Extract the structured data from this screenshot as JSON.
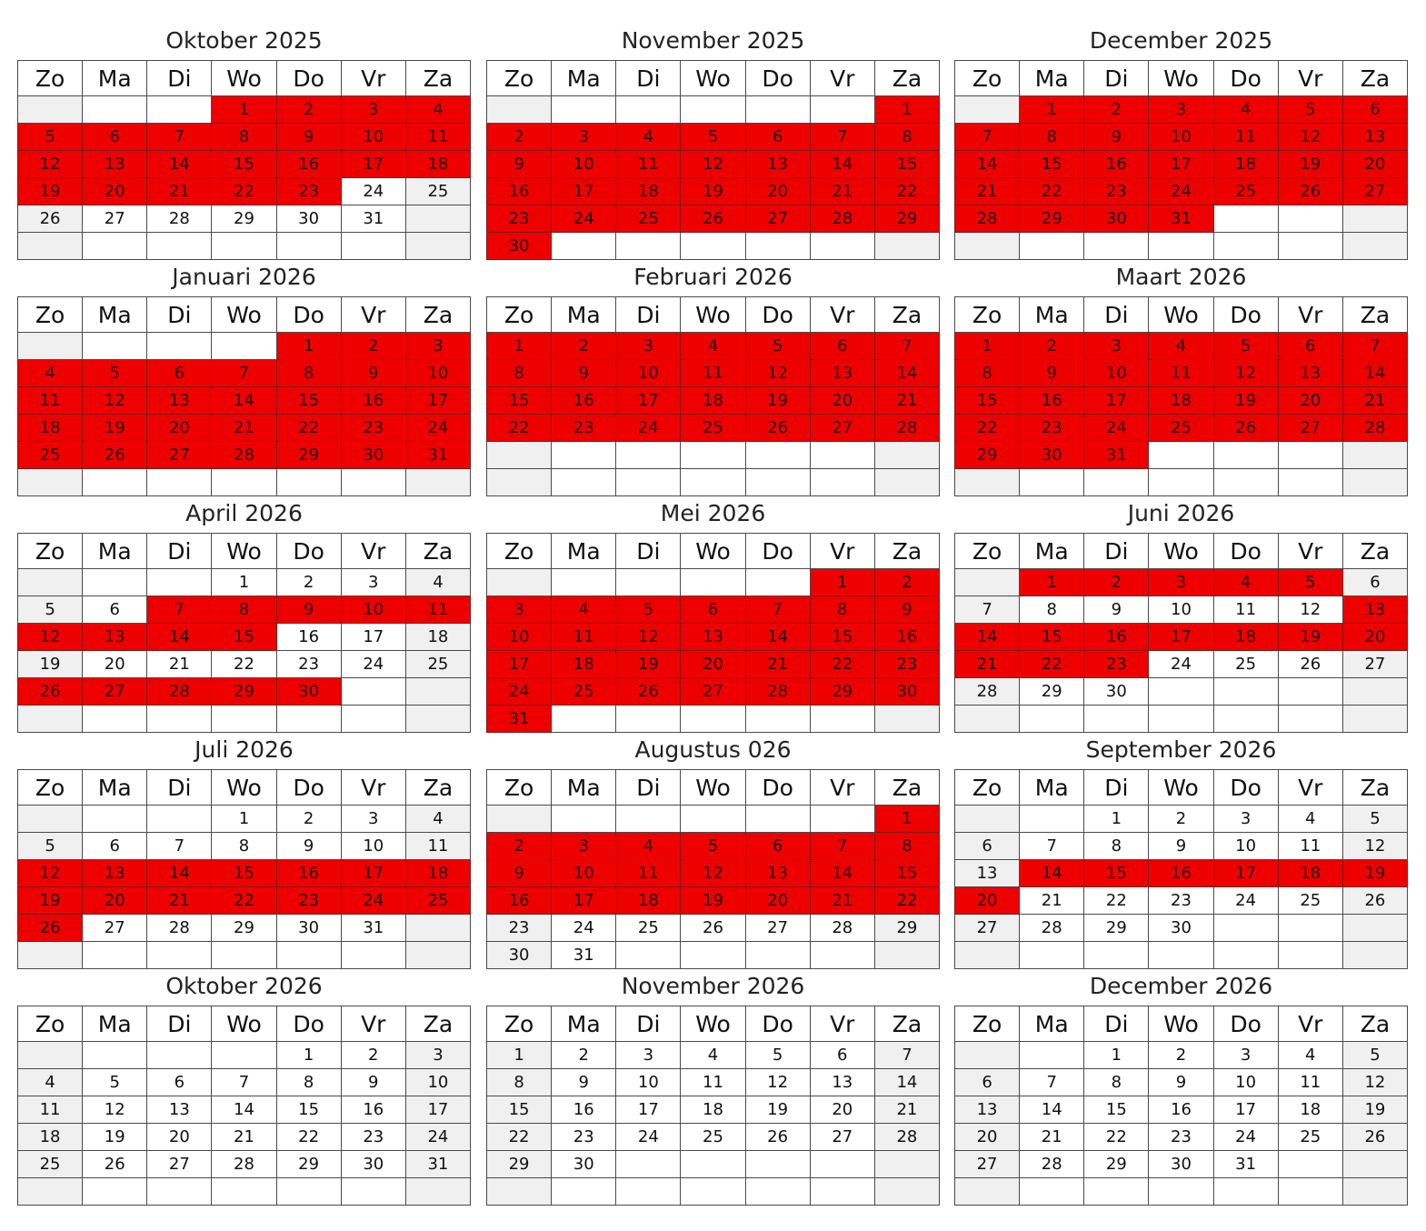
{
  "weekday_labels": [
    "Zo",
    "Ma",
    "Di",
    "Wo",
    "Do",
    "Vr",
    "Za"
  ],
  "colors": {
    "booked": "#ee0000",
    "free": "#ffffff",
    "weekend_empty": "#f0f0f0",
    "grid": "#4a4a4a"
  },
  "months": [
    {
      "title": "Oktober 2025",
      "start_weekday": 3,
      "days_in_month": 31,
      "booked_days": [
        1,
        2,
        3,
        4,
        5,
        6,
        7,
        8,
        9,
        10,
        11,
        12,
        13,
        14,
        15,
        16,
        17,
        18,
        19,
        20,
        21,
        22,
        23
      ]
    },
    {
      "title": "November 2025",
      "start_weekday": 6,
      "days_in_month": 30,
      "booked_days": [
        1,
        2,
        3,
        4,
        5,
        6,
        7,
        8,
        9,
        10,
        11,
        12,
        13,
        14,
        15,
        16,
        17,
        18,
        19,
        20,
        21,
        22,
        23,
        24,
        25,
        26,
        27,
        28,
        29,
        30
      ]
    },
    {
      "title": "December 2025",
      "start_weekday": 1,
      "days_in_month": 31,
      "booked_days": [
        1,
        2,
        3,
        4,
        5,
        6,
        7,
        8,
        9,
        10,
        11,
        12,
        13,
        14,
        15,
        16,
        17,
        18,
        19,
        20,
        21,
        22,
        23,
        24,
        25,
        26,
        27,
        28,
        29,
        30,
        31
      ]
    },
    {
      "title": "Januari 2026",
      "start_weekday": 4,
      "days_in_month": 31,
      "booked_days": [
        1,
        2,
        3,
        4,
        5,
        6,
        7,
        8,
        9,
        10,
        11,
        12,
        13,
        14,
        15,
        16,
        17,
        18,
        19,
        20,
        21,
        22,
        23,
        24,
        25,
        26,
        27,
        28,
        29,
        30,
        31
      ]
    },
    {
      "title": "Februari 2026",
      "start_weekday": 0,
      "days_in_month": 28,
      "booked_days": [
        1,
        2,
        3,
        4,
        5,
        6,
        7,
        8,
        9,
        10,
        11,
        12,
        13,
        14,
        15,
        16,
        17,
        18,
        19,
        20,
        21,
        22,
        23,
        24,
        25,
        26,
        27,
        28
      ]
    },
    {
      "title": "Maart 2026",
      "start_weekday": 0,
      "days_in_month": 31,
      "booked_days": [
        1,
        2,
        3,
        4,
        5,
        6,
        7,
        8,
        9,
        10,
        11,
        12,
        13,
        14,
        15,
        16,
        17,
        18,
        19,
        20,
        21,
        22,
        23,
        24,
        25,
        26,
        27,
        28,
        29,
        30,
        31
      ]
    },
    {
      "title": "April 2026",
      "start_weekday": 3,
      "days_in_month": 30,
      "booked_days": [
        7,
        8,
        9,
        10,
        11,
        12,
        13,
        14,
        15,
        26,
        27,
        28,
        29,
        30
      ]
    },
    {
      "title": "Mei 2026",
      "start_weekday": 5,
      "days_in_month": 31,
      "booked_days": [
        1,
        2,
        3,
        4,
        5,
        6,
        7,
        8,
        9,
        10,
        11,
        12,
        13,
        14,
        15,
        16,
        17,
        18,
        19,
        20,
        21,
        22,
        23,
        24,
        25,
        26,
        27,
        28,
        29,
        30,
        31
      ]
    },
    {
      "title": "Juni 2026",
      "start_weekday": 1,
      "days_in_month": 30,
      "booked_days": [
        1,
        2,
        3,
        4,
        5,
        13,
        14,
        15,
        16,
        17,
        18,
        19,
        20,
        21,
        22,
        23
      ]
    },
    {
      "title": "Juli 2026",
      "start_weekday": 3,
      "days_in_month": 31,
      "booked_days": [
        12,
        13,
        14,
        15,
        16,
        17,
        18,
        19,
        20,
        21,
        22,
        23,
        24,
        25,
        26
      ]
    },
    {
      "title": "Augustus 026",
      "start_weekday": 6,
      "days_in_month": 31,
      "booked_days": [
        1,
        2,
        3,
        4,
        5,
        6,
        7,
        8,
        9,
        10,
        11,
        12,
        13,
        14,
        15,
        16,
        17,
        18,
        19,
        20,
        21,
        22
      ]
    },
    {
      "title": "September 2026",
      "start_weekday": 2,
      "days_in_month": 30,
      "booked_days": [
        14,
        15,
        16,
        17,
        18,
        19,
        20
      ]
    },
    {
      "title": "Oktober 2026",
      "start_weekday": 4,
      "days_in_month": 31,
      "booked_days": []
    },
    {
      "title": "November 2026",
      "start_weekday": 0,
      "days_in_month": 30,
      "booked_days": []
    },
    {
      "title": "December 2026",
      "start_weekday": 2,
      "days_in_month": 31,
      "booked_days": []
    }
  ]
}
